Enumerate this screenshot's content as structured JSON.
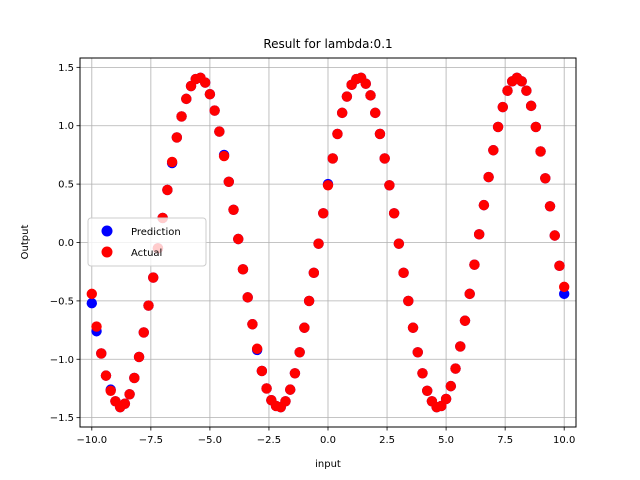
{
  "chart_data": {
    "type": "scatter",
    "title": "Result for lambda:0.1",
    "xlabel": "input",
    "ylabel": "Output",
    "xlim": [
      -10.5,
      10.5
    ],
    "ylim": [
      -1.58,
      1.58
    ],
    "xticks": [
      -10.0,
      -7.5,
      -5.0,
      -2.5,
      0.0,
      2.5,
      5.0,
      7.5,
      10.0
    ],
    "xtick_labels": [
      "−10.0",
      "−7.5",
      "−5.0",
      "−2.5",
      "0.0",
      "2.5",
      "5.0",
      "7.5",
      "10.0"
    ],
    "yticks": [
      -1.5,
      -1.0,
      -0.5,
      0.0,
      0.5,
      1.0,
      1.5
    ],
    "ytick_labels": [
      "−1.5",
      "−1.0",
      "−0.5",
      "0.0",
      "0.5",
      "1.0",
      "1.5"
    ],
    "grid": true,
    "legend_position": "center-left",
    "series": [
      {
        "name": "Prediction",
        "color": "#0000ff",
        "x": [
          -10.0,
          -9.8,
          -9.6,
          -9.4,
          -9.2,
          -9.0,
          -8.8,
          -8.6,
          -8.4,
          -8.2,
          -8.0,
          -7.8,
          -7.6,
          -7.4,
          -7.2,
          -7.0,
          -6.8,
          -6.6,
          -6.4,
          -6.2,
          -6.0,
          -5.8,
          -5.6,
          -5.4,
          -5.2,
          -5.0,
          -4.8,
          -4.6,
          -4.4,
          -4.2,
          -4.0,
          -3.8,
          -3.6,
          -3.4,
          -3.2,
          -3.0,
          -2.8,
          -2.6,
          -2.4,
          -2.2,
          -2.0,
          -1.8,
          -1.6,
          -1.4,
          -1.2,
          -1.0,
          -0.8,
          -0.6,
          -0.4,
          -0.2,
          0.0,
          0.2,
          0.4,
          0.6,
          0.8,
          1.0,
          1.2,
          1.4,
          1.6,
          1.8,
          2.0,
          2.2,
          2.4,
          2.6,
          2.8,
          3.0,
          3.2,
          3.4,
          3.6,
          3.8,
          4.0,
          4.2,
          4.4,
          4.6,
          4.8,
          5.0,
          5.2,
          5.4,
          5.6,
          5.8,
          6.0,
          6.2,
          6.4,
          6.6,
          6.8,
          7.0,
          7.2,
          7.4,
          7.6,
          7.8,
          8.0,
          8.2,
          8.4,
          8.6,
          8.8,
          9.0,
          9.2,
          9.4,
          9.6,
          9.8,
          10.0
        ],
        "y": [
          -0.52,
          -0.76,
          -0.95,
          -1.14,
          -1.26,
          -1.36,
          -1.41,
          -1.38,
          -1.3,
          -1.16,
          -0.98,
          -0.77,
          -0.54,
          -0.3,
          -0.05,
          0.21,
          0.45,
          0.68,
          0.9,
          1.08,
          1.23,
          1.34,
          1.4,
          1.41,
          1.37,
          1.27,
          1.13,
          0.95,
          0.75,
          0.52,
          0.28,
          0.03,
          -0.23,
          -0.47,
          -0.7,
          -0.92,
          -1.1,
          -1.25,
          -1.35,
          -1.4,
          -1.41,
          -1.36,
          -1.26,
          -1.12,
          -0.94,
          -0.73,
          -0.5,
          -0.26,
          -0.01,
          0.25,
          0.5,
          0.72,
          0.93,
          1.11,
          1.25,
          1.35,
          1.4,
          1.41,
          1.36,
          1.26,
          1.11,
          0.93,
          0.72,
          0.49,
          0.25,
          -0.01,
          -0.26,
          -0.5,
          -0.73,
          -0.94,
          -1.12,
          -1.27,
          -1.36,
          -1.41,
          -1.4,
          -1.34,
          -1.23,
          -1.08,
          -0.89,
          -0.67,
          -0.44,
          -0.19,
          0.07,
          0.32,
          0.56,
          0.79,
          0.99,
          1.16,
          1.3,
          1.38,
          1.41,
          1.38,
          1.3,
          1.17,
          0.99,
          0.78,
          0.55,
          0.31,
          0.06,
          -0.2,
          -0.44
        ]
      },
      {
        "name": "Actual",
        "color": "#ff0000",
        "x": [
          -10.0,
          -9.8,
          -9.6,
          -9.4,
          -9.2,
          -9.0,
          -8.8,
          -8.6,
          -8.4,
          -8.2,
          -8.0,
          -7.8,
          -7.6,
          -7.4,
          -7.2,
          -7.0,
          -6.8,
          -6.6,
          -6.4,
          -6.2,
          -6.0,
          -5.8,
          -5.6,
          -5.4,
          -5.2,
          -5.0,
          -4.8,
          -4.6,
          -4.4,
          -4.2,
          -4.0,
          -3.8,
          -3.6,
          -3.4,
          -3.2,
          -3.0,
          -2.8,
          -2.6,
          -2.4,
          -2.2,
          -2.0,
          -1.8,
          -1.6,
          -1.4,
          -1.2,
          -1.0,
          -0.8,
          -0.6,
          -0.4,
          -0.2,
          0.0,
          0.2,
          0.4,
          0.6,
          0.8,
          1.0,
          1.2,
          1.4,
          1.6,
          1.8,
          2.0,
          2.2,
          2.4,
          2.6,
          2.8,
          3.0,
          3.2,
          3.4,
          3.6,
          3.8,
          4.0,
          4.2,
          4.4,
          4.6,
          4.8,
          5.0,
          5.2,
          5.4,
          5.6,
          5.8,
          6.0,
          6.2,
          6.4,
          6.6,
          6.8,
          7.0,
          7.2,
          7.4,
          7.6,
          7.8,
          8.0,
          8.2,
          8.4,
          8.6,
          8.8,
          9.0,
          9.2,
          9.4,
          9.6,
          9.8,
          10.0
        ],
        "y": [
          -0.44,
          -0.72,
          -0.95,
          -1.14,
          -1.27,
          -1.36,
          -1.41,
          -1.38,
          -1.3,
          -1.16,
          -0.98,
          -0.77,
          -0.54,
          -0.3,
          -0.05,
          0.21,
          0.45,
          0.69,
          0.9,
          1.08,
          1.23,
          1.34,
          1.4,
          1.41,
          1.37,
          1.27,
          1.13,
          0.95,
          0.74,
          0.52,
          0.28,
          0.03,
          -0.23,
          -0.47,
          -0.7,
          -0.91,
          -1.1,
          -1.25,
          -1.35,
          -1.4,
          -1.41,
          -1.36,
          -1.26,
          -1.12,
          -0.94,
          -0.73,
          -0.5,
          -0.26,
          -0.01,
          0.25,
          0.49,
          0.72,
          0.93,
          1.11,
          1.25,
          1.35,
          1.4,
          1.41,
          1.36,
          1.26,
          1.11,
          0.93,
          0.72,
          0.49,
          0.25,
          -0.01,
          -0.26,
          -0.5,
          -0.73,
          -0.94,
          -1.12,
          -1.27,
          -1.36,
          -1.41,
          -1.4,
          -1.34,
          -1.23,
          -1.08,
          -0.89,
          -0.67,
          -0.44,
          -0.19,
          0.07,
          0.32,
          0.56,
          0.79,
          0.99,
          1.16,
          1.3,
          1.38,
          1.41,
          1.38,
          1.3,
          1.17,
          0.99,
          0.78,
          0.55,
          0.31,
          0.06,
          -0.2,
          -0.38
        ]
      }
    ]
  }
}
